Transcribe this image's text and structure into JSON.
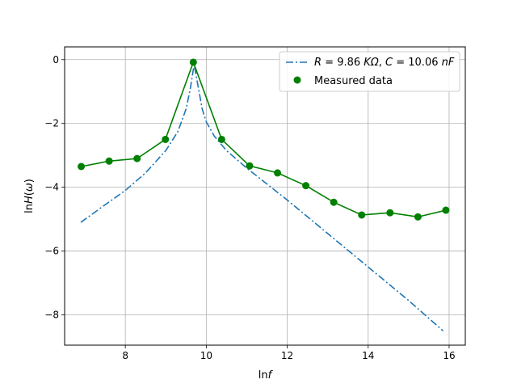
{
  "chart_data": {
    "type": "line",
    "xlabel": "ln f",
    "ylabel": "ln H(ω)",
    "xlim": [
      6.5,
      16.4
    ],
    "ylim": [
      -8.95,
      0.4
    ],
    "xticks": [
      8,
      10,
      12,
      14,
      16
    ],
    "yticks": [
      0,
      -2,
      -4,
      -6,
      -8
    ],
    "grid": true,
    "legend_position": "top-right",
    "series": [
      {
        "name": "R = 9.86 KΩ, C = 10.06 nF",
        "style": "dash-dot",
        "color": "#1f77b4",
        "x": [
          6.9,
          7.5,
          8.0,
          8.5,
          9.0,
          9.3,
          9.5,
          9.6,
          9.7,
          9.8,
          9.9,
          10.0,
          10.2,
          10.5,
          11.0,
          12.0,
          13.0,
          14.0,
          15.0,
          15.85
        ],
        "y": [
          -5.1,
          -4.55,
          -4.1,
          -3.55,
          -2.85,
          -2.25,
          -1.55,
          -0.95,
          -0.15,
          -0.85,
          -1.55,
          -1.95,
          -2.4,
          -2.85,
          -3.4,
          -4.4,
          -5.45,
          -6.5,
          -7.55,
          -8.5
        ]
      },
      {
        "name": "Measured data",
        "style": "line-markers",
        "color": "#008000",
        "x": [
          6.91,
          7.6,
          8.29,
          8.99,
          9.68,
          10.38,
          11.07,
          11.76,
          12.46,
          13.15,
          13.84,
          14.54,
          15.23,
          15.92
        ],
        "y": [
          -3.35,
          -3.18,
          -3.1,
          -2.5,
          -0.08,
          -2.5,
          -3.33,
          -3.55,
          -3.95,
          -4.47,
          -4.87,
          -4.8,
          -4.93,
          -4.72
        ]
      }
    ]
  }
}
